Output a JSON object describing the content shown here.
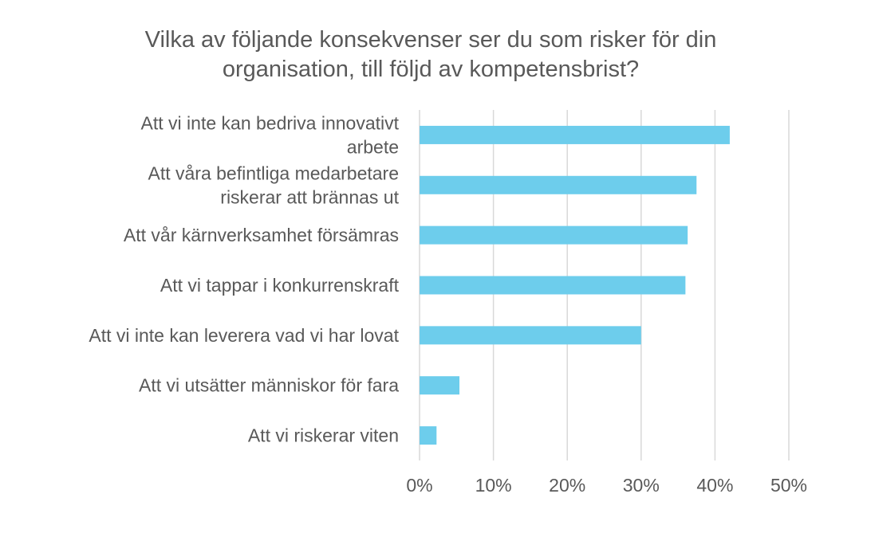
{
  "chart_data": {
    "type": "bar",
    "orientation": "horizontal",
    "title_lines": [
      "Vilka av följande konsekvenser ser du som risker för din",
      "organisation, till följd av kompetensbrist?"
    ],
    "categories": [
      [
        "Att vi inte kan bedriva innovativt",
        "arbete"
      ],
      [
        "Att våra befintliga medarbetare",
        "riskerar att brännas ut"
      ],
      [
        "Att vår kärnverksamhet försämras"
      ],
      [
        "Att vi tappar i konkurrenskraft"
      ],
      [
        "Att vi inte kan leverera vad vi har lovat"
      ],
      [
        "Att vi utsätter människor för fara"
      ],
      [
        "Att vi riskerar viten"
      ]
    ],
    "values": [
      42,
      37.5,
      36.3,
      36,
      30,
      5.4,
      2.3
    ],
    "unit": "%",
    "xlim": [
      0,
      50
    ],
    "xticks": [
      "0%",
      "10%",
      "20%",
      "30%",
      "40%",
      "50%"
    ],
    "grid": "vertical",
    "bar_color": "#6dcdec"
  }
}
